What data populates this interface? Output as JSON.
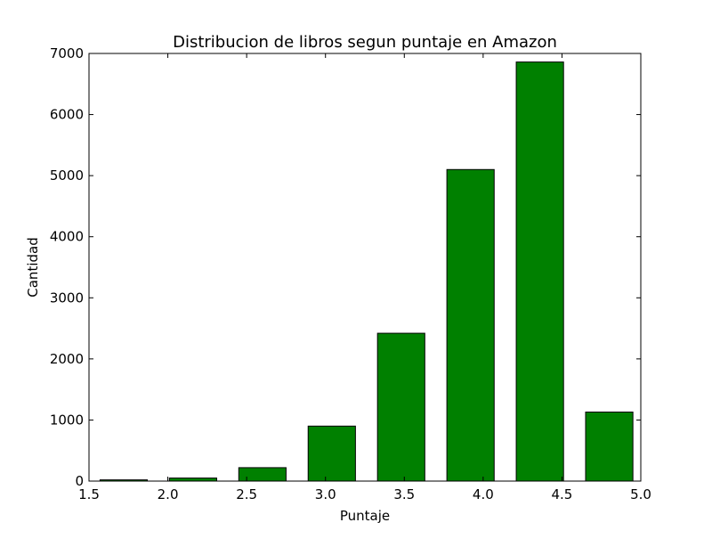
{
  "chart_data": {
    "type": "bar",
    "title": "Distribucion de libros segun puntaje en Amazon",
    "xlabel": "Puntaje",
    "ylabel": "Cantidad",
    "xlim": [
      1.5,
      5.0
    ],
    "ylim": [
      0,
      7000
    ],
    "x_ticks": [
      "1.5",
      "2.0",
      "2.5",
      "3.0",
      "3.5",
      "4.0",
      "4.5",
      "5.0"
    ],
    "y_ticks": [
      "0",
      "1000",
      "2000",
      "3000",
      "4000",
      "5000",
      "6000",
      "7000"
    ],
    "bars": [
      {
        "x_start": 1.57,
        "x_end": 1.87,
        "value": 20
      },
      {
        "x_start": 2.01,
        "x_end": 2.31,
        "value": 50
      },
      {
        "x_start": 2.45,
        "x_end": 2.75,
        "value": 220
      },
      {
        "x_start": 2.89,
        "x_end": 3.19,
        "value": 900
      },
      {
        "x_start": 3.33,
        "x_end": 3.63,
        "value": 2420
      },
      {
        "x_start": 3.77,
        "x_end": 4.07,
        "value": 5100
      },
      {
        "x_start": 4.21,
        "x_end": 4.51,
        "value": 6860
      },
      {
        "x_start": 4.65,
        "x_end": 4.95,
        "value": 1130
      }
    ],
    "grid": false,
    "legend": "none",
    "colors": {
      "bar_fill": "#008000",
      "bar_edge": "#000000",
      "axes": "#000000"
    }
  }
}
